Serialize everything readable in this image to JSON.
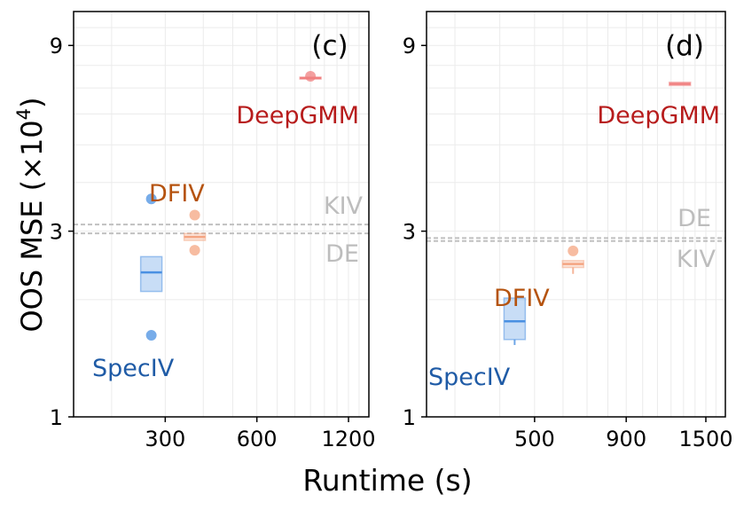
{
  "figure": {
    "xlabel": "Runtime (s)",
    "ylabel_prefix": "OOS MSE (×10",
    "ylabel_exp": "4",
    "ylabel_suffix": ")"
  },
  "chart_data": [
    {
      "panel": "(c)",
      "type": "box+scatter",
      "x_scale": "log",
      "y_scale": "log",
      "xlim": [
        150,
        1400
      ],
      "ylim": [
        1,
        11
      ],
      "x_ticks": [
        300,
        600,
        1200
      ],
      "x_tick_labels": [
        "300",
        "600",
        "1200"
      ],
      "y_ticks": [
        1,
        3,
        9
      ],
      "y_tick_labels": [
        "1",
        "3",
        "9"
      ],
      "grid": true,
      "hlines": [
        {
          "name": "KIV",
          "y": 3.12,
          "color": "#c0c0c0"
        },
        {
          "name": "DE",
          "y": 2.96,
          "color": "#c0c0c0"
        }
      ],
      "series": [
        {
          "name": "SpecIV",
          "color": "#4a90e2",
          "x": 270,
          "box": {
            "q1": 2.1,
            "median": 2.35,
            "q3": 2.58
          },
          "outliers": [
            3.63,
            1.62
          ]
        },
        {
          "name": "DFIV",
          "color": "#f4a582",
          "x": 375,
          "box": {
            "q1": 2.84,
            "median": 2.9,
            "q3": 2.96
          },
          "outliers": [
            3.3,
            2.68
          ]
        },
        {
          "name": "DeepGMM",
          "color": "#f08080",
          "x": 900,
          "box": {
            "q1": 7.38,
            "median": 7.42,
            "q3": 7.46
          },
          "outliers": [
            7.5
          ]
        }
      ],
      "labels": [
        {
          "text": "SpecIV",
          "color": "#1f5ba6"
        },
        {
          "text": "DFIV",
          "color": "#b5530f"
        },
        {
          "text": "DeepGMM",
          "color": "#b71c1c"
        },
        {
          "text": "KIV",
          "color": "#bdbdbd"
        },
        {
          "text": "DE",
          "color": "#bdbdbd"
        }
      ]
    },
    {
      "panel": "(d)",
      "type": "box+scatter",
      "x_scale": "log",
      "y_scale": "log",
      "xlim": [
        250,
        1700
      ],
      "ylim": [
        1,
        11
      ],
      "x_ticks": [
        500,
        900,
        1500
      ],
      "x_tick_labels": [
        "500",
        "900",
        "1500"
      ],
      "y_ticks": [
        1,
        3,
        9
      ],
      "y_tick_labels": [
        "1",
        "3",
        "9"
      ],
      "grid": true,
      "hlines": [
        {
          "name": "DE",
          "y": 2.88,
          "color": "#c0c0c0"
        },
        {
          "name": "KIV",
          "y": 2.83,
          "color": "#c0c0c0"
        }
      ],
      "series": [
        {
          "name": "SpecIV",
          "color": "#4a90e2",
          "x": 440,
          "box": {
            "q1": 1.58,
            "median": 1.76,
            "q3": 2.02
          },
          "whisker_low": 1.53
        },
        {
          "name": "DFIV",
          "color": "#f4a582",
          "x": 640,
          "box": {
            "q1": 2.42,
            "median": 2.47,
            "q3": 2.52
          },
          "whisker_low": 2.33,
          "outliers": [
            2.67
          ]
        },
        {
          "name": "DeepGMM",
          "color": "#f08080",
          "x": 1270,
          "box": {
            "q1": 7.1,
            "median": 7.17,
            "q3": 7.24
          }
        }
      ],
      "labels": [
        {
          "text": "SpecIV",
          "color": "#1f5ba6"
        },
        {
          "text": "DFIV",
          "color": "#b5530f"
        },
        {
          "text": "DeepGMM",
          "color": "#b71c1c"
        },
        {
          "text": "DE",
          "color": "#bdbdbd"
        },
        {
          "text": "KIV",
          "color": "#bdbdbd"
        }
      ]
    }
  ]
}
